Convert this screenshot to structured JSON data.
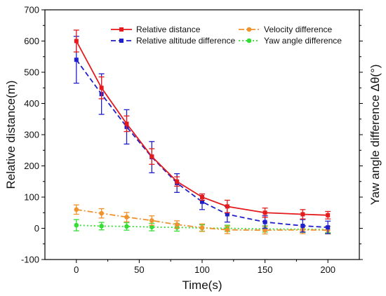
{
  "chart_data": {
    "type": "line",
    "xlabel": "Time(s)",
    "ylabel": "Relative distance(m)",
    "y2label": "Yaw angle difference Δθ(°)",
    "xlim": [
      -25,
      225
    ],
    "ylim": [
      -100,
      700
    ],
    "xticks": [
      0,
      50,
      100,
      150,
      200
    ],
    "yticks": [
      -100,
      0,
      100,
      200,
      300,
      400,
      500,
      600,
      700
    ],
    "grid": false,
    "legend": "top",
    "series": [
      {
        "name": "Relative distance",
        "color": "#e41a1c",
        "style": "solid",
        "marker": "square",
        "x": [
          0,
          20,
          40,
          60,
          80,
          100,
          120,
          150,
          180,
          200
        ],
        "y": [
          600,
          450,
          335,
          230,
          150,
          100,
          70,
          50,
          45,
          42
        ],
        "err": [
          35,
          35,
          25,
          25,
          15,
          10,
          20,
          15,
          15,
          12
        ]
      },
      {
        "name": "Relative altitude difference",
        "color": "#1f1fcc",
        "style": "dashed",
        "marker": "square",
        "x": [
          0,
          20,
          40,
          60,
          80,
          100,
          120,
          150,
          180,
          200
        ],
        "y": [
          540,
          430,
          325,
          228,
          145,
          85,
          45,
          20,
          8,
          3
        ],
        "err": [
          75,
          65,
          55,
          50,
          30,
          25,
          25,
          20,
          20,
          20
        ]
      },
      {
        "name": "Velocity difference",
        "color": "#f0922d",
        "style": "dashdot",
        "marker": "circle",
        "x": [
          0,
          20,
          40,
          60,
          80,
          100,
          120,
          150,
          180,
          200
        ],
        "y": [
          60,
          48,
          36,
          25,
          12,
          2,
          -5,
          -6,
          -5,
          -6
        ],
        "err": [
          15,
          15,
          15,
          15,
          12,
          12,
          12,
          12,
          12,
          12
        ]
      },
      {
        "name": "Yaw angle difference",
        "color": "#33dd33",
        "style": "dotted",
        "marker": "circle",
        "x": [
          0,
          20,
          40,
          60,
          80,
          100,
          120,
          150,
          180,
          200
        ],
        "y": [
          10,
          7,
          6,
          4,
          3,
          1,
          0,
          -2,
          -3,
          -4
        ],
        "err": [
          18,
          12,
          12,
          12,
          12,
          10,
          10,
          10,
          10,
          10
        ]
      }
    ]
  }
}
